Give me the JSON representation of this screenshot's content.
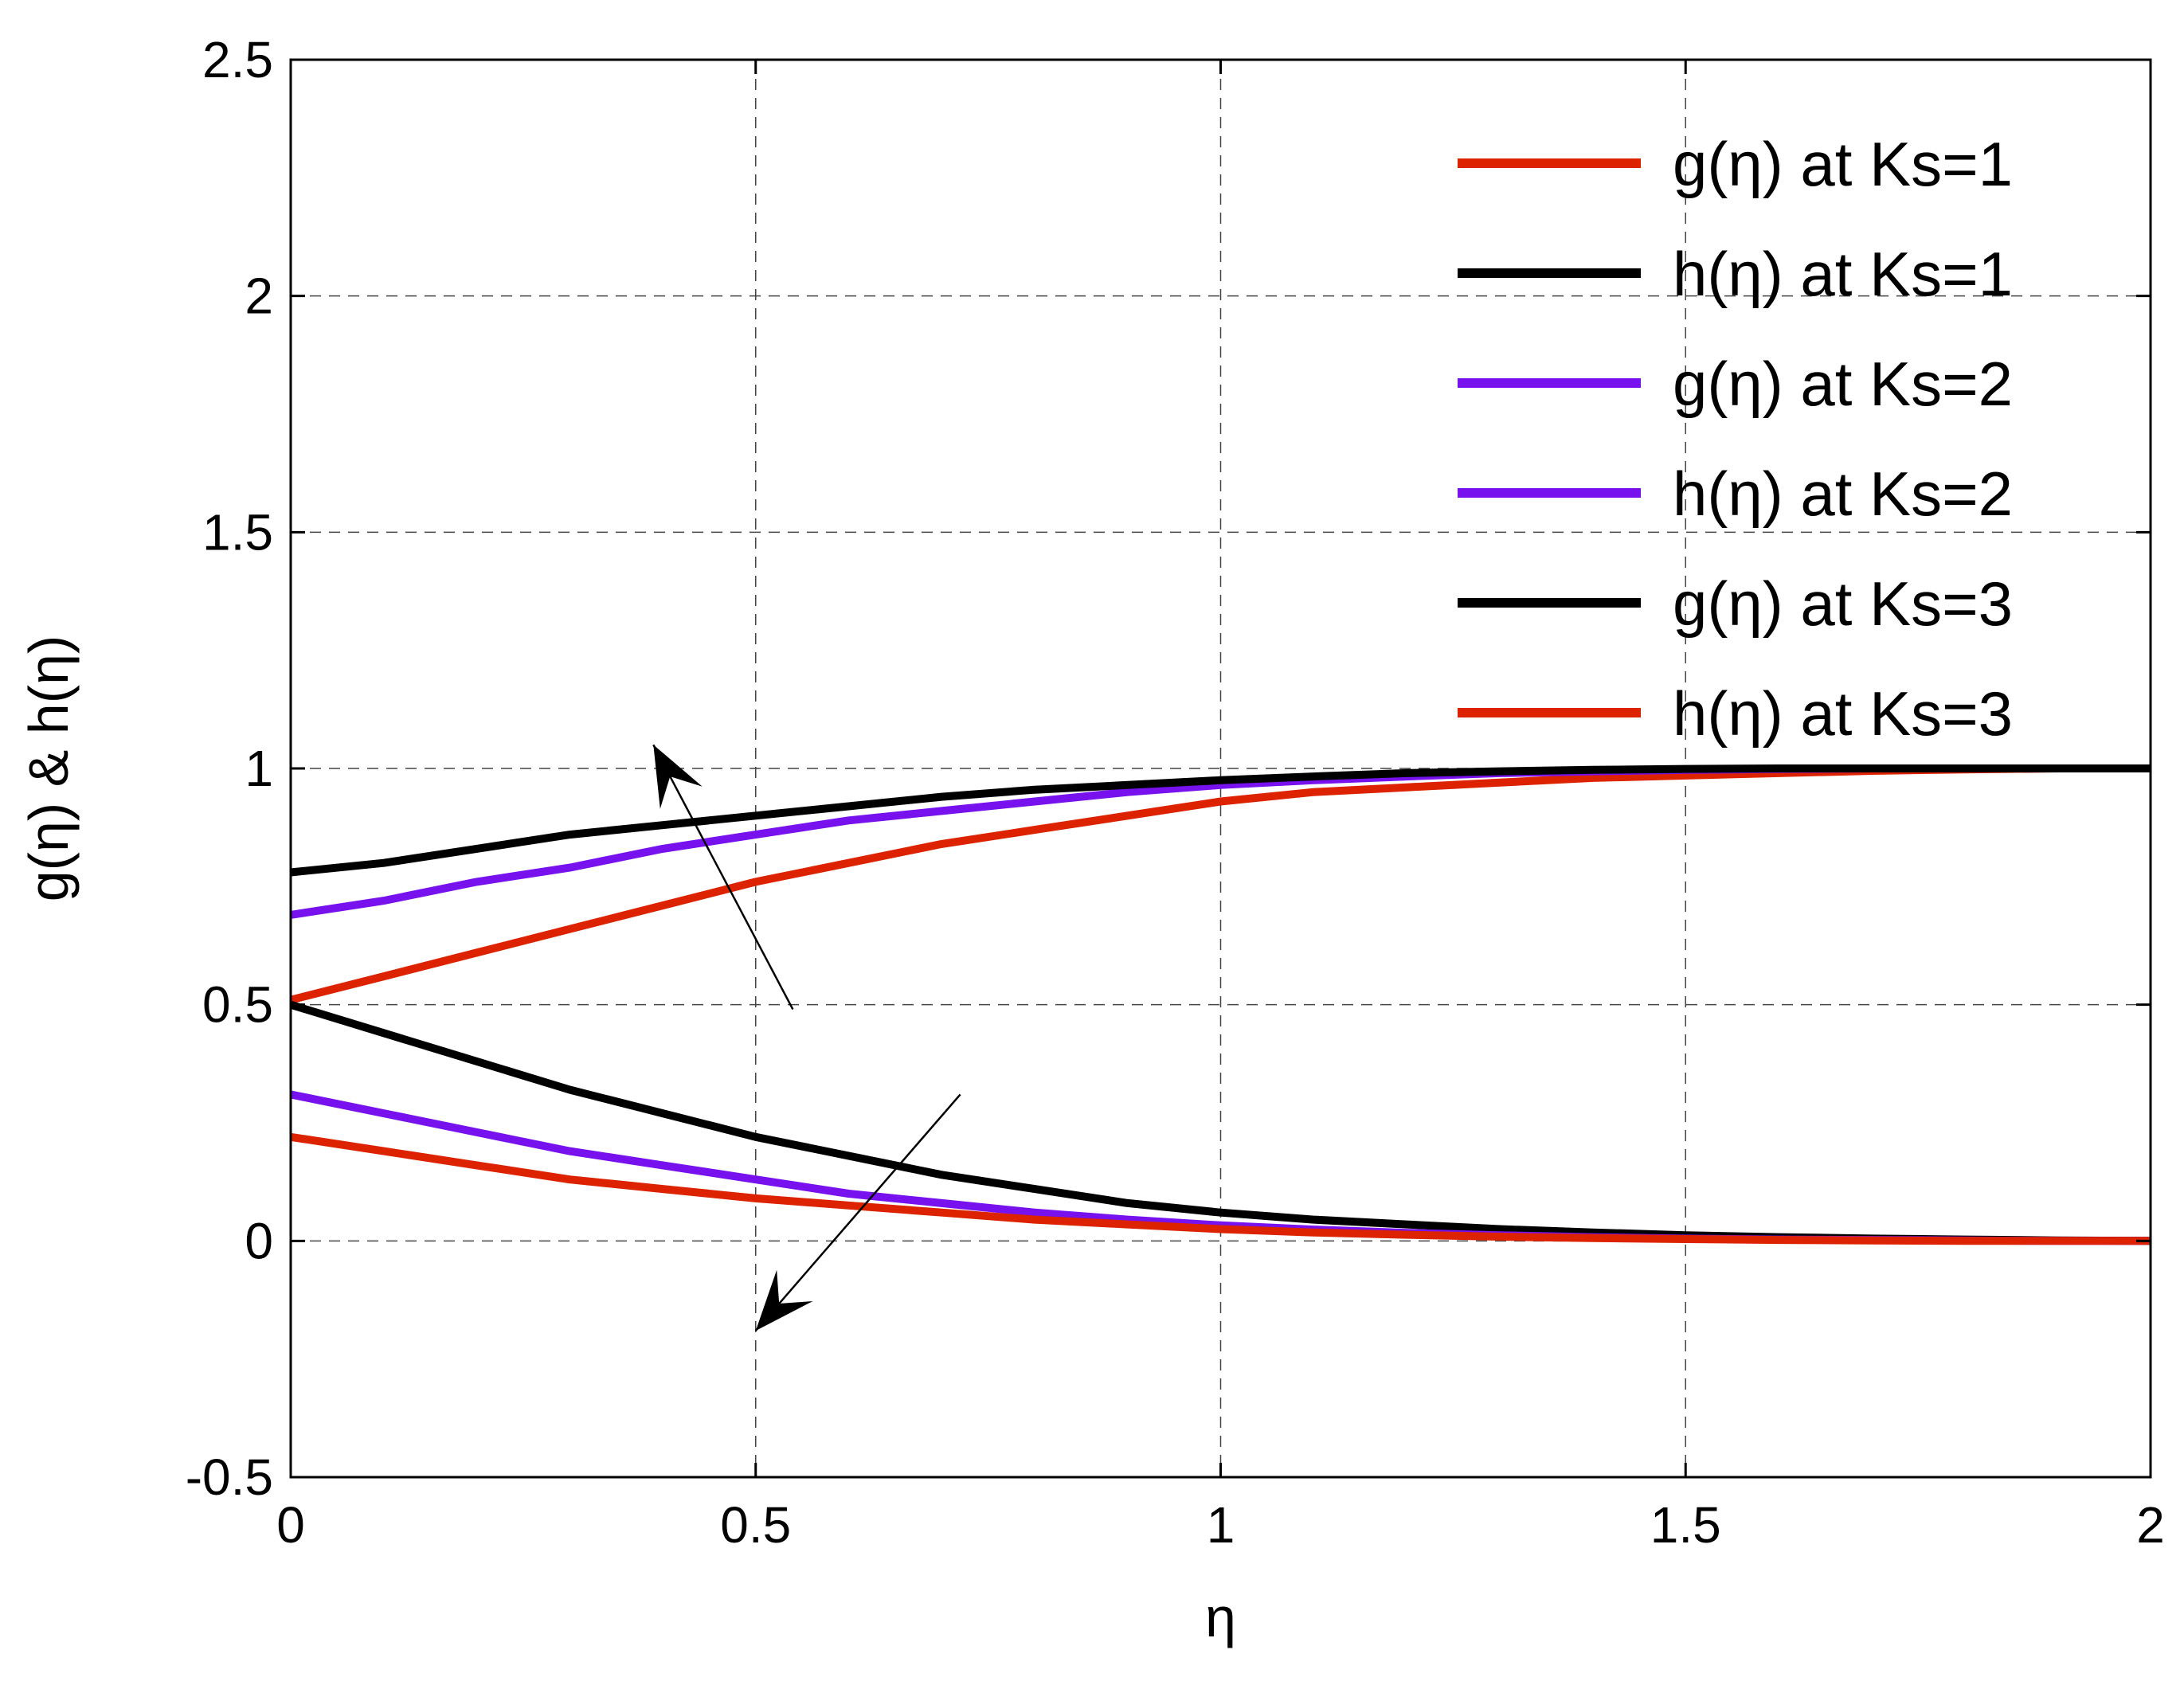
{
  "chart_data": {
    "type": "line",
    "xlabel": "η",
    "ylabel": "g(η) & h(η)",
    "xlim": [
      0,
      2
    ],
    "ylim": [
      -0.5,
      2.5
    ],
    "xticks": [
      "0",
      "0.5",
      "1",
      "1.5",
      "2"
    ],
    "yticks": [
      "-0.5",
      "0",
      "0.5",
      "1",
      "1.5",
      "2",
      "2.5"
    ],
    "xtick_values": [
      0,
      0.5,
      1,
      1.5,
      2
    ],
    "ytick_values": [
      -0.5,
      0,
      0.5,
      1,
      1.5,
      2,
      2.5
    ],
    "grid": true,
    "legend_position": "top-right",
    "x": [
      0,
      0.1,
      0.2,
      0.3,
      0.4,
      0.5,
      0.6,
      0.7,
      0.8,
      0.9,
      1.0,
      1.1,
      1.2,
      1.3,
      1.4,
      1.5,
      1.6,
      1.7,
      1.8,
      1.9,
      2.0
    ],
    "series": [
      {
        "name": "g(η) at Ks=1",
        "color": "#dd2200",
        "values": [
          0.51,
          0.56,
          0.61,
          0.66,
          0.71,
          0.76,
          0.8,
          0.84,
          0.87,
          0.9,
          0.93,
          0.95,
          0.96,
          0.97,
          0.98,
          0.985,
          0.99,
          0.995,
          0.998,
          1.0,
          1.0
        ]
      },
      {
        "name": "h(η) at Ks=1",
        "color": "#000000",
        "values": [
          0.5,
          0.44,
          0.38,
          0.32,
          0.27,
          0.22,
          0.18,
          0.14,
          0.11,
          0.08,
          0.06,
          0.045,
          0.035,
          0.025,
          0.018,
          0.012,
          0.008,
          0.005,
          0.003,
          0.001,
          0.0
        ]
      },
      {
        "name": "g(η) at Ks=2",
        "color": "#7711ee",
        "values": [
          0.69,
          0.72,
          0.76,
          0.79,
          0.83,
          0.86,
          0.89,
          0.91,
          0.93,
          0.95,
          0.965,
          0.975,
          0.983,
          0.99,
          0.994,
          0.997,
          0.999,
          1.0,
          1.0,
          1.0,
          1.0
        ]
      },
      {
        "name": "h(η) at Ks=2",
        "color": "#7711ee",
        "values": [
          0.31,
          0.27,
          0.23,
          0.19,
          0.16,
          0.13,
          0.1,
          0.08,
          0.06,
          0.045,
          0.033,
          0.024,
          0.017,
          0.012,
          0.008,
          0.005,
          0.003,
          0.002,
          0.001,
          0.0,
          0.0
        ]
      },
      {
        "name": "g(η) at Ks=3",
        "color": "#000000",
        "values": [
          0.78,
          0.8,
          0.83,
          0.86,
          0.88,
          0.9,
          0.92,
          0.94,
          0.955,
          0.965,
          0.975,
          0.983,
          0.99,
          0.994,
          0.997,
          0.999,
          1.0,
          1.0,
          1.0,
          1.0,
          1.0
        ]
      },
      {
        "name": "h(η) at Ks=3",
        "color": "#dd2200",
        "values": [
          0.22,
          0.19,
          0.16,
          0.13,
          0.11,
          0.09,
          0.075,
          0.06,
          0.045,
          0.035,
          0.025,
          0.018,
          0.013,
          0.009,
          0.006,
          0.004,
          0.002,
          0.001,
          0.0,
          0.0,
          0.0
        ]
      }
    ],
    "annotations": [
      {
        "kind": "arrow",
        "from": [
          0.54,
          0.49
        ],
        "to": [
          0.39,
          1.05
        ]
      },
      {
        "kind": "arrow",
        "from": [
          0.72,
          0.31
        ],
        "to": [
          0.5,
          -0.19
        ]
      }
    ]
  }
}
